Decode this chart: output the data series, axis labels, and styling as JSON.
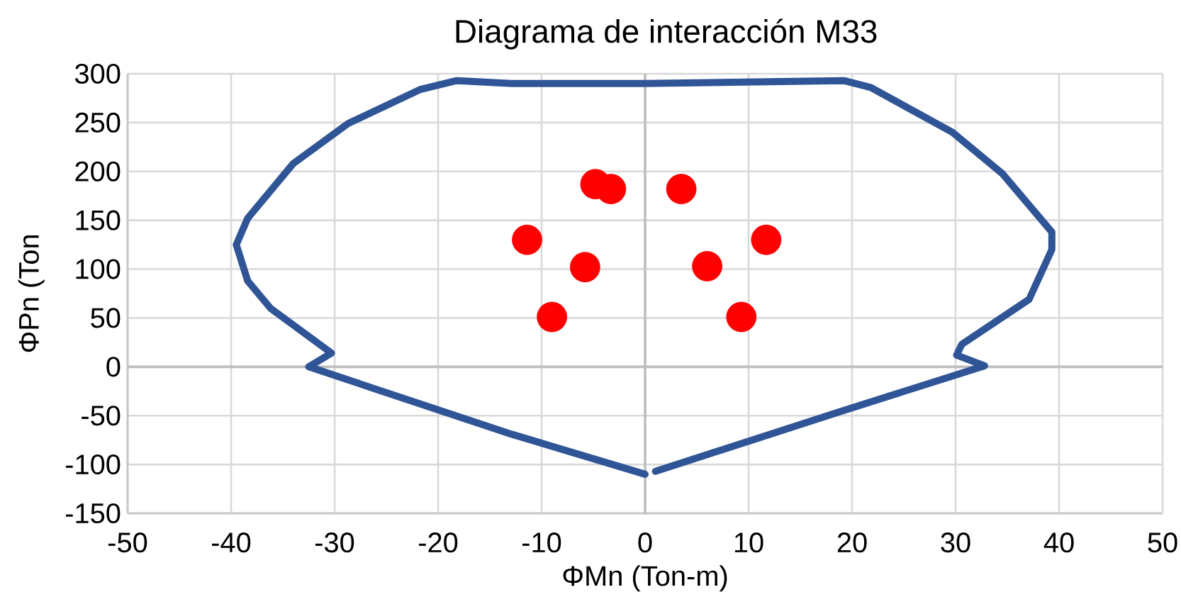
{
  "chart_data": {
    "type": "scatter",
    "title": "Diagrama de interacción M33",
    "xlabel": "ΦMn (Ton-m)",
    "ylabel": "ΦPn (Ton",
    "xlim": [
      -50,
      50
    ],
    "ylim": [
      -150,
      300
    ],
    "xticks": [
      -50,
      -40,
      -30,
      -20,
      -10,
      0,
      10,
      20,
      30,
      40,
      50
    ],
    "yticks": [
      -150,
      -100,
      -50,
      0,
      50,
      100,
      150,
      200,
      250,
      300
    ],
    "grid": true,
    "series": [
      {
        "type": "line",
        "color": "#2f5597",
        "marker": "none",
        "line_style": "solid",
        "x": [
          0,
          -12.9,
          -32.5,
          -30.3,
          -36.2,
          -38.4,
          -39.5,
          -38.4,
          -34,
          -28.7,
          -21.7,
          -18.2,
          -12.9,
          0,
          19.2,
          21.8,
          29.7,
          34.5,
          39.3,
          39.3,
          37.1,
          30.6,
          30.1,
          32.8,
          18.8,
          1
        ],
        "values": [
          -110,
          -69,
          0,
          14,
          60,
          88,
          125,
          152,
          208,
          249,
          284,
          293,
          290,
          290,
          293,
          286,
          240,
          198,
          138,
          120,
          69,
          23,
          12,
          1,
          -46,
          -107
        ]
      },
      {
        "type": "scatter",
        "color": "#ff0000",
        "marker": "circle",
        "x": [
          -4.8,
          -3.3,
          -11.4,
          -5.8,
          -9,
          3.5,
          11.7,
          6,
          9.3
        ],
        "values": [
          187,
          182,
          130,
          102,
          51,
          182,
          130,
          103,
          51
        ]
      }
    ]
  }
}
